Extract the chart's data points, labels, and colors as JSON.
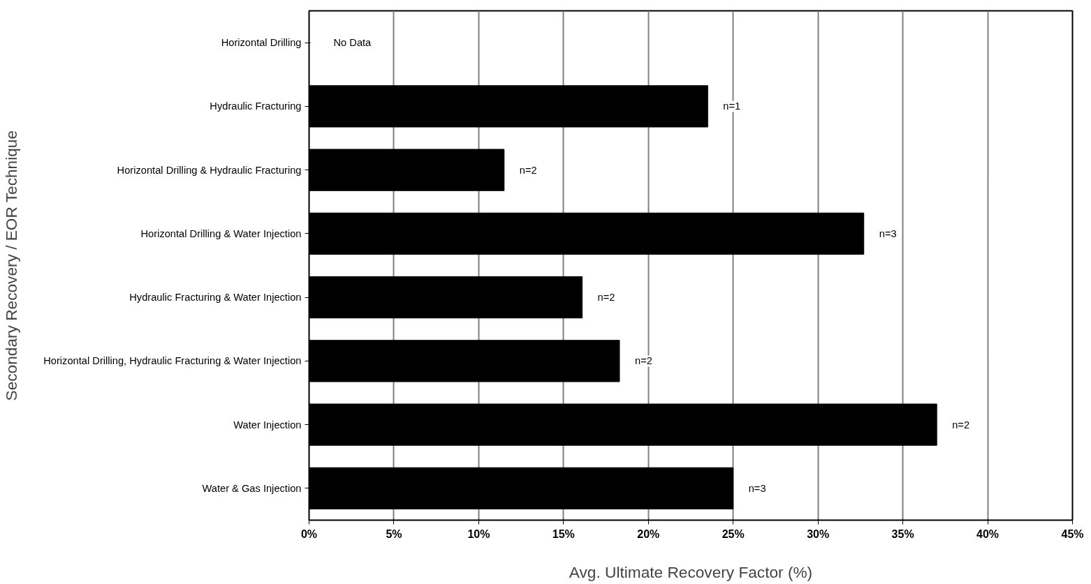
{
  "chart_data": {
    "type": "bar",
    "orientation": "horizontal",
    "xlabel": "Avg. Ultimate Recovery Factor (%)",
    "ylabel": "Secondary Recovery / EOR Technique",
    "categories": [
      "Horizontal Drilling",
      "Hydraulic Fracturing",
      "Horizontal Drilling & Hydraulic Fracturing",
      "Horizontal Drilling & Water Injection",
      "Hydraulic Fracturing & Water Injection",
      "Horizontal Drilling, Hydraulic Fracturing & Water Injection",
      "Water Injection",
      "Water & Gas Injection"
    ],
    "values": [
      null,
      23.5,
      11.5,
      32.7,
      16.1,
      18.3,
      37.0,
      25.0
    ],
    "color": "#000000",
    "xlim": [
      0,
      45
    ],
    "xticks": [
      {
        "value": 0,
        "label": "0%"
      },
      {
        "value": 5,
        "label": "5%"
      },
      {
        "value": 10,
        "label": "10%"
      },
      {
        "value": 15,
        "label": "15%"
      },
      {
        "value": 20,
        "label": "20%"
      },
      {
        "value": 25,
        "label": "25%"
      },
      {
        "value": 30,
        "label": "30%"
      },
      {
        "value": 35,
        "label": "35%"
      },
      {
        "value": 40,
        "label": "40%"
      },
      {
        "value": 45,
        "label": "45%"
      }
    ],
    "grid": "x",
    "annotations": [
      "No Data",
      {
        "text": "n=1",
        "x": 23.5,
        "y": "Hydraulic Fracturing"
      },
      {
        "text": "n=2",
        "x": 11.5,
        "y": "Horizontal Drilling & Hydraulic Fracturing"
      },
      {
        "text": "n=3",
        "x": 32.7,
        "y": "Horizontal Drilling & Water Injection"
      },
      {
        "text": "n=2",
        "x": 16.1,
        "y": "Hydraulic Fracturing & Water Injection"
      },
      {
        "text": "n=2",
        "x": 18.3,
        "y": "Horizontal Drilling, Hydraulic Fracturing & Water Injection"
      },
      {
        "text": "n=2",
        "x": 37.0,
        "y": "Water Injection"
      },
      {
        "text": "n=3",
        "x": 25.0,
        "y": "Water & Gas Injection"
      }
    ]
  }
}
